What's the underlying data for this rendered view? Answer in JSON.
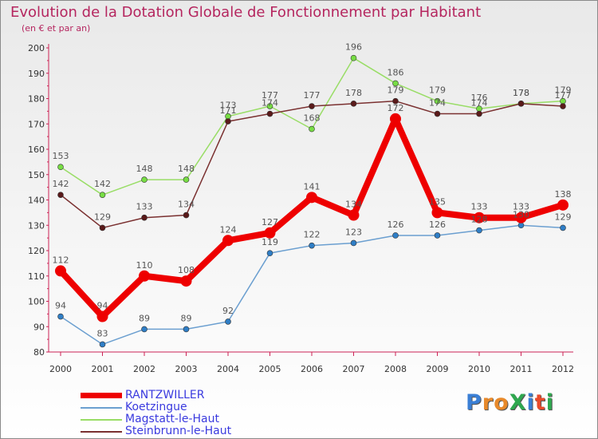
{
  "title": "Evolution de la Dotation Globale de Fonctionnement par Habitant",
  "subtitle": "(en € et par an)",
  "logo": "ProXiti",
  "colors": {
    "title": "#b5265f",
    "axis": "#cc2255",
    "legend_text": "#3a3adf"
  },
  "chart_data": {
    "type": "line",
    "title": "Evolution de la Dotation Globale de Fonctionnement par Habitant",
    "subtitle": "(en € et par an)",
    "xlabel": "",
    "ylabel": "",
    "ylim": [
      80,
      200
    ],
    "yticks": [
      80,
      90,
      100,
      110,
      120,
      130,
      140,
      150,
      160,
      170,
      180,
      190,
      200
    ],
    "categories": [
      "2000",
      "2001",
      "2002",
      "2003",
      "2004",
      "2005",
      "2006",
      "2007",
      "2008",
      "2009",
      "2010",
      "2011",
      "2012"
    ],
    "grid": false,
    "legend_position": "bottom-left",
    "series": [
      {
        "name": "RANTZWILLER",
        "color": "#ee0000",
        "marker": "#ee0000",
        "values": [
          112,
          94,
          110,
          108,
          124,
          127,
          141,
          134,
          172,
          135,
          133,
          133,
          138
        ]
      },
      {
        "name": "Koetzingue",
        "color": "#6b9fd0",
        "marker": "#2f7ec6",
        "values": [
          94,
          83,
          89,
          89,
          92,
          119,
          122,
          123,
          126,
          126,
          128,
          130,
          129
        ]
      },
      {
        "name": "Magstatt-le-Haut",
        "color": "#99dd66",
        "marker": "#77dd44",
        "values": [
          153,
          142,
          148,
          148,
          173,
          177,
          168,
          196,
          186,
          179,
          176,
          178,
          179
        ]
      },
      {
        "name": "Steinbrunn-le-Haut",
        "color": "#7a3030",
        "marker": "#5a1a1a",
        "values": [
          142,
          129,
          133,
          134,
          171,
          174,
          177,
          178,
          179,
          174,
          174,
          178,
          177
        ]
      }
    ]
  }
}
